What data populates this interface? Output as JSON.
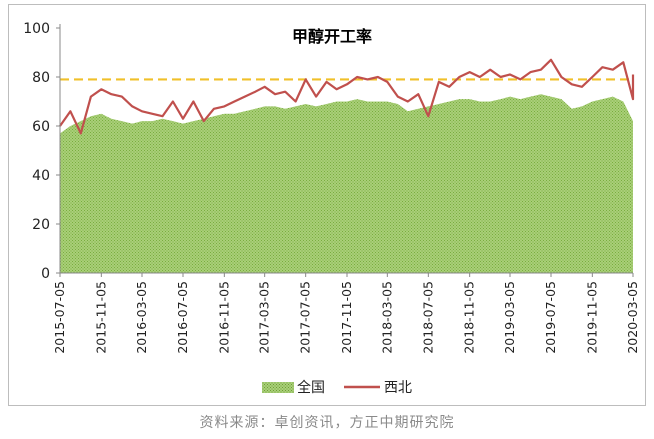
{
  "chart_data": {
    "type": "area",
    "title": "甲醇开工率",
    "xlabel": "",
    "ylabel": "",
    "ylim": [
      0,
      100
    ],
    "yticks": [
      0,
      20,
      40,
      60,
      80,
      100
    ],
    "xticks": [
      "2015-07-05",
      "2015-11-05",
      "2016-03-05",
      "2016-07-05",
      "2016-11-05",
      "2017-03-05",
      "2017-07-05",
      "2017-11-05",
      "2018-03-05",
      "2018-07-05",
      "2018-11-05",
      "2019-03-05",
      "2019-07-05",
      "2019-11-05",
      "2020-03-05"
    ],
    "grid": false,
    "legend_position": "bottom",
    "reference_line": {
      "value": 79,
      "style": "dashed",
      "color": "#f0c02a"
    },
    "series": [
      {
        "name": "全国",
        "kind": "area",
        "color": "#8cc153",
        "points": [
          [
            "2015-07-05",
            57
          ],
          [
            "2015-08-05",
            60
          ],
          [
            "2015-09-05",
            62
          ],
          [
            "2015-10-05",
            64
          ],
          [
            "2015-11-05",
            65
          ],
          [
            "2015-12-05",
            63
          ],
          [
            "2016-01-05",
            62
          ],
          [
            "2016-02-05",
            61
          ],
          [
            "2016-03-05",
            62
          ],
          [
            "2016-04-05",
            62
          ],
          [
            "2016-05-05",
            63
          ],
          [
            "2016-06-05",
            62
          ],
          [
            "2016-07-05",
            61
          ],
          [
            "2016-08-05",
            62
          ],
          [
            "2016-09-05",
            63
          ],
          [
            "2016-10-05",
            64
          ],
          [
            "2016-11-05",
            65
          ],
          [
            "2016-12-05",
            65
          ],
          [
            "2017-01-05",
            66
          ],
          [
            "2017-02-05",
            67
          ],
          [
            "2017-03-05",
            68
          ],
          [
            "2017-04-05",
            68
          ],
          [
            "2017-05-05",
            67
          ],
          [
            "2017-06-05",
            68
          ],
          [
            "2017-07-05",
            69
          ],
          [
            "2017-08-05",
            68
          ],
          [
            "2017-09-05",
            69
          ],
          [
            "2017-10-05",
            70
          ],
          [
            "2017-11-05",
            70
          ],
          [
            "2017-12-05",
            71
          ],
          [
            "2018-01-05",
            70
          ],
          [
            "2018-02-05",
            70
          ],
          [
            "2018-03-05",
            70
          ],
          [
            "2018-04-05",
            69
          ],
          [
            "2018-05-05",
            66
          ],
          [
            "2018-06-05",
            67
          ],
          [
            "2018-07-05",
            68
          ],
          [
            "2018-08-05",
            69
          ],
          [
            "2018-09-05",
            70
          ],
          [
            "2018-10-05",
            71
          ],
          [
            "2018-11-05",
            71
          ],
          [
            "2018-12-05",
            70
          ],
          [
            "2019-01-05",
            70
          ],
          [
            "2019-02-05",
            71
          ],
          [
            "2019-03-05",
            72
          ],
          [
            "2019-04-05",
            71
          ],
          [
            "2019-05-05",
            72
          ],
          [
            "2019-06-05",
            73
          ],
          [
            "2019-07-05",
            72
          ],
          [
            "2019-08-05",
            71
          ],
          [
            "2019-09-05",
            67
          ],
          [
            "2019-10-05",
            68
          ],
          [
            "2019-11-05",
            70
          ],
          [
            "2019-12-05",
            71
          ],
          [
            "2020-01-05",
            72
          ],
          [
            "2020-02-05",
            70
          ],
          [
            "2020-03-05",
            62
          ],
          [
            "2020-03-20",
            65
          ]
        ]
      },
      {
        "name": "西北",
        "kind": "line",
        "color": "#c0504d",
        "points": [
          [
            "2015-07-05",
            60
          ],
          [
            "2015-08-05",
            66
          ],
          [
            "2015-09-05",
            57
          ],
          [
            "2015-10-05",
            72
          ],
          [
            "2015-11-05",
            75
          ],
          [
            "2015-12-05",
            73
          ],
          [
            "2016-01-05",
            72
          ],
          [
            "2016-02-05",
            68
          ],
          [
            "2016-03-05",
            66
          ],
          [
            "2016-04-05",
            65
          ],
          [
            "2016-05-05",
            64
          ],
          [
            "2016-06-05",
            70
          ],
          [
            "2016-07-05",
            63
          ],
          [
            "2016-08-05",
            70
          ],
          [
            "2016-09-05",
            62
          ],
          [
            "2016-10-05",
            67
          ],
          [
            "2016-11-05",
            68
          ],
          [
            "2016-12-05",
            70
          ],
          [
            "2017-01-05",
            72
          ],
          [
            "2017-02-05",
            74
          ],
          [
            "2017-03-05",
            76
          ],
          [
            "2017-04-05",
            73
          ],
          [
            "2017-05-05",
            74
          ],
          [
            "2017-06-05",
            70
          ],
          [
            "2017-07-05",
            79
          ],
          [
            "2017-08-05",
            72
          ],
          [
            "2017-09-05",
            78
          ],
          [
            "2017-10-05",
            75
          ],
          [
            "2017-11-05",
            77
          ],
          [
            "2017-12-05",
            80
          ],
          [
            "2018-01-05",
            79
          ],
          [
            "2018-02-05",
            80
          ],
          [
            "2018-03-05",
            78
          ],
          [
            "2018-04-05",
            72
          ],
          [
            "2018-05-05",
            70
          ],
          [
            "2018-06-05",
            73
          ],
          [
            "2018-07-05",
            64
          ],
          [
            "2018-08-05",
            78
          ],
          [
            "2018-09-05",
            76
          ],
          [
            "2018-10-05",
            80
          ],
          [
            "2018-11-05",
            82
          ],
          [
            "2018-12-05",
            80
          ],
          [
            "2019-01-05",
            83
          ],
          [
            "2019-02-05",
            80
          ],
          [
            "2019-03-05",
            81
          ],
          [
            "2019-04-05",
            79
          ],
          [
            "2019-05-05",
            82
          ],
          [
            "2019-06-05",
            83
          ],
          [
            "2019-07-05",
            87
          ],
          [
            "2019-08-05",
            80
          ],
          [
            "2019-09-05",
            77
          ],
          [
            "2019-10-05",
            76
          ],
          [
            "2019-11-05",
            80
          ],
          [
            "2019-12-05",
            84
          ],
          [
            "2020-01-05",
            83
          ],
          [
            "2020-02-05",
            86
          ],
          [
            "2020-03-05",
            71
          ],
          [
            "2020-03-20",
            81
          ]
        ]
      }
    ]
  },
  "source_text": "资料来源：卓创资讯，方正中期研究院"
}
